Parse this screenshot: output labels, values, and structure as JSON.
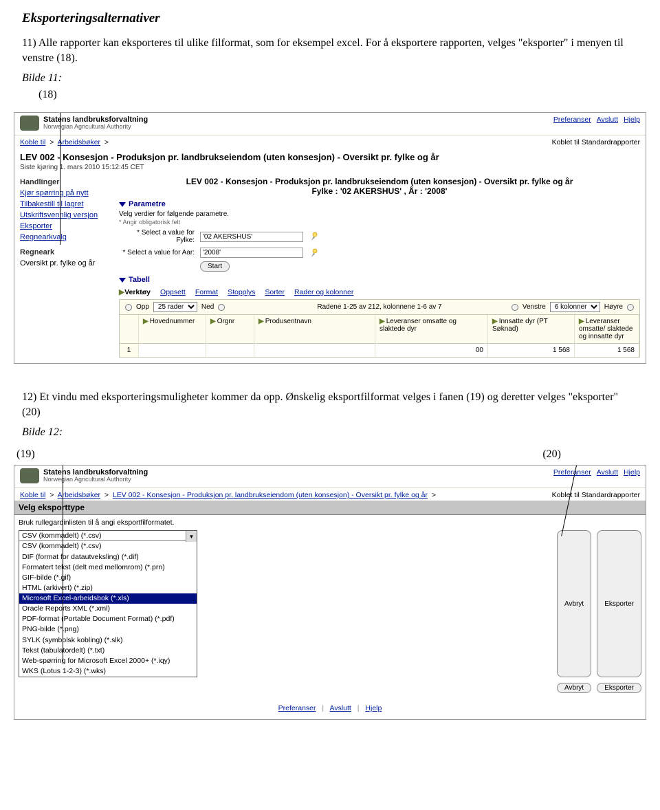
{
  "doc": {
    "section_title": "Eksporteringsalternativer",
    "p11": "11) Alle rapporter kan eksporteres til ulike filformat, som for eksempel excel. For å eksportere rapporten, velges \"eksporter\" i menyen til venstre (18).",
    "bilde11": "Bilde 11:",
    "ref18": "(18)",
    "p12": "12) Et vindu med eksporteringsmuligheter kommer da opp. Ønskelig eksportfilformat velges i fanen (19) og deretter velges \"eksporter\" (20)",
    "bilde12": "Bilde 12:",
    "ref19": "(19)",
    "ref20": "(20)"
  },
  "brand": {
    "line1": "Statens landbruksforvaltning",
    "line2": "Norwegian Agricultural Authority"
  },
  "toplinks": {
    "pref": "Preferanser",
    "avslutt": "Avslutt",
    "hjelp": "Hjelp"
  },
  "ss1": {
    "crumb1": "Koble til",
    "crumb2": "Arbeidsbøker",
    "conn": "Koblet til Standardrapporter",
    "title": "LEV 002 - Konsesjon - Produksjon pr. landbrukseiendom (uten konsesjon) - Oversikt pr. fylke og år",
    "lastrun": "Siste kjøring 1. mars 2010 15:12:45 CET",
    "center_title": "LEV 002 - Konsesjon - Produksjon pr. landbrukseiendom (uten konsesjon) - Oversikt pr. fylke og år",
    "center_sub": "Fylke : '02 AKERSHUS' , År : '2008'",
    "side": {
      "handlinger": "Handlinger",
      "kjor": "Kjør spørring på nytt",
      "tilbake": "Tilbakestill til lagret",
      "utskrift": "Utskriftsvennlig versjon",
      "eksporter": "Eksporter",
      "regneark_act": "Regnearkvalg",
      "regneark_h": "Regneark",
      "oversikt": "Oversikt pr. fylke og år"
    },
    "params": {
      "header": "Parametre",
      "desc": "Velg verdier for følgende parametre.",
      "note": "* Angir obligatorisk felt",
      "fylke_label": "* Select a value for Fylke:",
      "fylke_value": "'02 AKERSHUS'",
      "aar_label": "* Select a value for Aar:",
      "aar_value": "'2008'",
      "start": "Start"
    },
    "tabell": {
      "header": "Tabell",
      "verktoy": "Verktøy",
      "oppsett": "Oppsett",
      "format": "Format",
      "stopplys": "Stopplys",
      "sorter": "Sorter",
      "rader": "Rader og kolonner"
    },
    "pager": {
      "opp": "Opp",
      "rows_sel": "25 rader",
      "ned": "Ned",
      "center": "Radene 1-25 av 212, kolonnene 1-6 av 7",
      "venstre": "Venstre",
      "cols_sel": "6 kolonner",
      "hoyre": "Høyre"
    },
    "cols": {
      "c1": "Hovednummer",
      "c2": "Orgnr",
      "c3": "Produsentnavn",
      "c4": "Leveranser omsatte og slaktede dyr",
      "c5": "Innsatte dyr (PT Søknad)",
      "c6": "Leveranser omsatte/ slaktede og innsatte dyr"
    },
    "row": {
      "idx": "1",
      "v1": "00",
      "v2": "1 568",
      "v3": "1 568"
    }
  },
  "ss2": {
    "crumb1": "Koble til",
    "crumb2": "Arbeidsbøker",
    "crumb3": "LEV 002 - Konsesjon - Produksjon pr. landbrukseiendom (uten konsesjon) - Oversikt pr. fylke og år",
    "conn": "Koblet til Standardrapporter",
    "export_h": "Velg eksporttype",
    "export_sub": "Bruk rullegardinlisten til å angi eksportfilformatet.",
    "selected": "CSV (kommadelt) (*.csv)",
    "avbryt": "Avbryt",
    "eksporter": "Eksporter",
    "options": [
      "CSV (kommadelt) (*.csv)",
      "DIF (format for datautveksling) (*.dif)",
      "Formatert tekst (delt med mellomrom) (*.prn)",
      "GIF-bilde (*.gif)",
      "HTML (arkivert) (*.zip)",
      "Microsoft Excel-arbeidsbok (*.xls)",
      "Oracle Reports XML (*.xml)",
      "PDF-format (Portable Document Format) (*.pdf)",
      "PNG-bilde (*.png)",
      "SYLK (symbolsk kobling) (*.slk)",
      "Tekst (tabulatordelt) (*.txt)",
      "Web-spørring for Microsoft Excel 2000+ (*.iqy)",
      "WKS (Lotus 1-2-3) (*.wks)"
    ],
    "sel_index": 5
  },
  "footer": {
    "pref": "Preferanser",
    "avslutt": "Avslutt",
    "hjelp": "Hjelp"
  }
}
